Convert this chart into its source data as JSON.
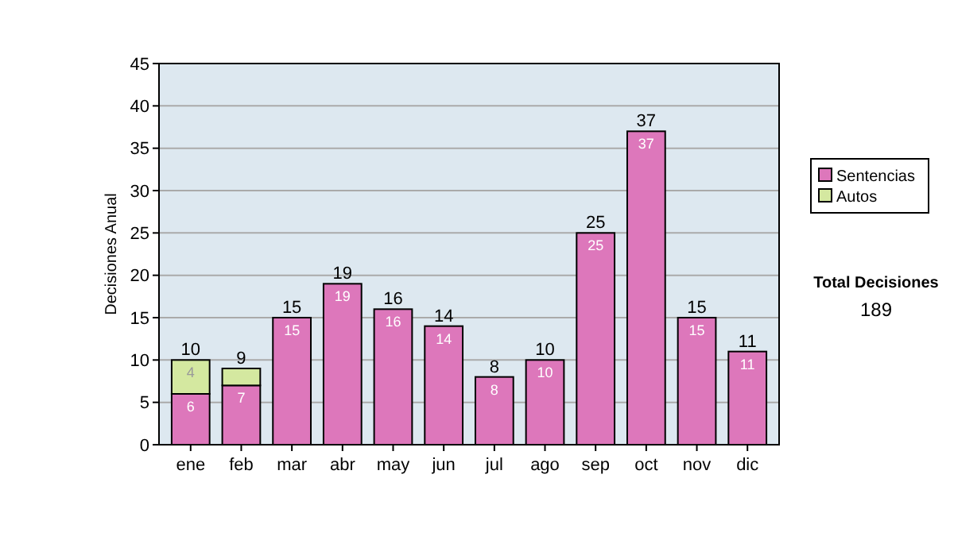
{
  "chart_data": {
    "type": "bar",
    "stacked": true,
    "ylabel": "Decisiones Anual",
    "categories": [
      "ene",
      "feb",
      "mar",
      "abr",
      "may",
      "jun",
      "jul",
      "ago",
      "sep",
      "oct",
      "nov",
      "dic"
    ],
    "series": [
      {
        "name": "Sentencias",
        "color": "#dd77bb",
        "values": [
          6,
          7,
          15,
          19,
          16,
          14,
          8,
          10,
          25,
          37,
          15,
          11
        ],
        "value_labels": [
          "6",
          "7",
          "15",
          "19",
          "16",
          "14",
          "8",
          "10",
          "25",
          "37",
          "15",
          "11"
        ]
      },
      {
        "name": "Autos",
        "color": "#d4e8a0",
        "values": [
          4,
          2,
          null,
          null,
          null,
          null,
          null,
          null,
          null,
          null,
          null,
          null
        ],
        "value_labels": [
          "4",
          null,
          null,
          null,
          null,
          null,
          null,
          null,
          null,
          null,
          null,
          null
        ]
      }
    ],
    "totals": [
      "10",
      "9",
      "15",
      "19",
      "16",
      "14",
      "8",
      "10",
      "25",
      "37",
      "15",
      "11"
    ],
    "ylim": [
      0,
      45
    ],
    "yticks": [
      0,
      5,
      10,
      15,
      20,
      25,
      30,
      35,
      40,
      45
    ],
    "grid": "y",
    "legend": "right",
    "annotations": [
      "Total Decisiones",
      "189"
    ]
  }
}
